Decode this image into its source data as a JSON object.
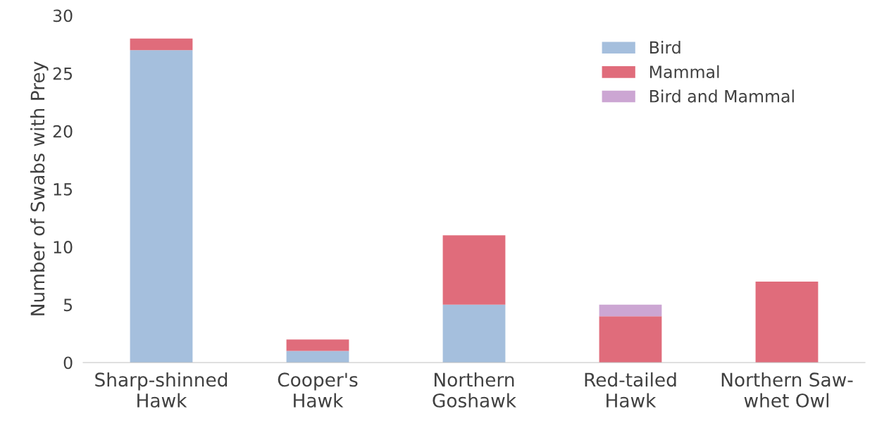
{
  "chart_data": {
    "type": "bar",
    "stacked": true,
    "ylabel": "Number of Swabs with Prey",
    "categories": [
      "Sharp-shinned\nHawk",
      "Cooper's\nHawk",
      "Northern\nGoshawk",
      "Red-tailed\nHawk",
      "Northern Saw-\nwhet Owl"
    ],
    "series": [
      {
        "name": "Bird",
        "color": "#a5bfdd",
        "values": [
          27,
          1,
          5,
          0,
          0
        ]
      },
      {
        "name": "Mammal",
        "color": "#e06c7b",
        "values": [
          1,
          1,
          6,
          4,
          7
        ]
      },
      {
        "name": "Bird and Mammal",
        "color": "#cca6d3",
        "values": [
          0,
          0,
          0,
          1,
          0
        ]
      }
    ],
    "ylim": [
      0,
      30
    ],
    "yticks": [
      0,
      5,
      10,
      15,
      20,
      25,
      30
    ],
    "grid": false,
    "legend": "top right"
  }
}
